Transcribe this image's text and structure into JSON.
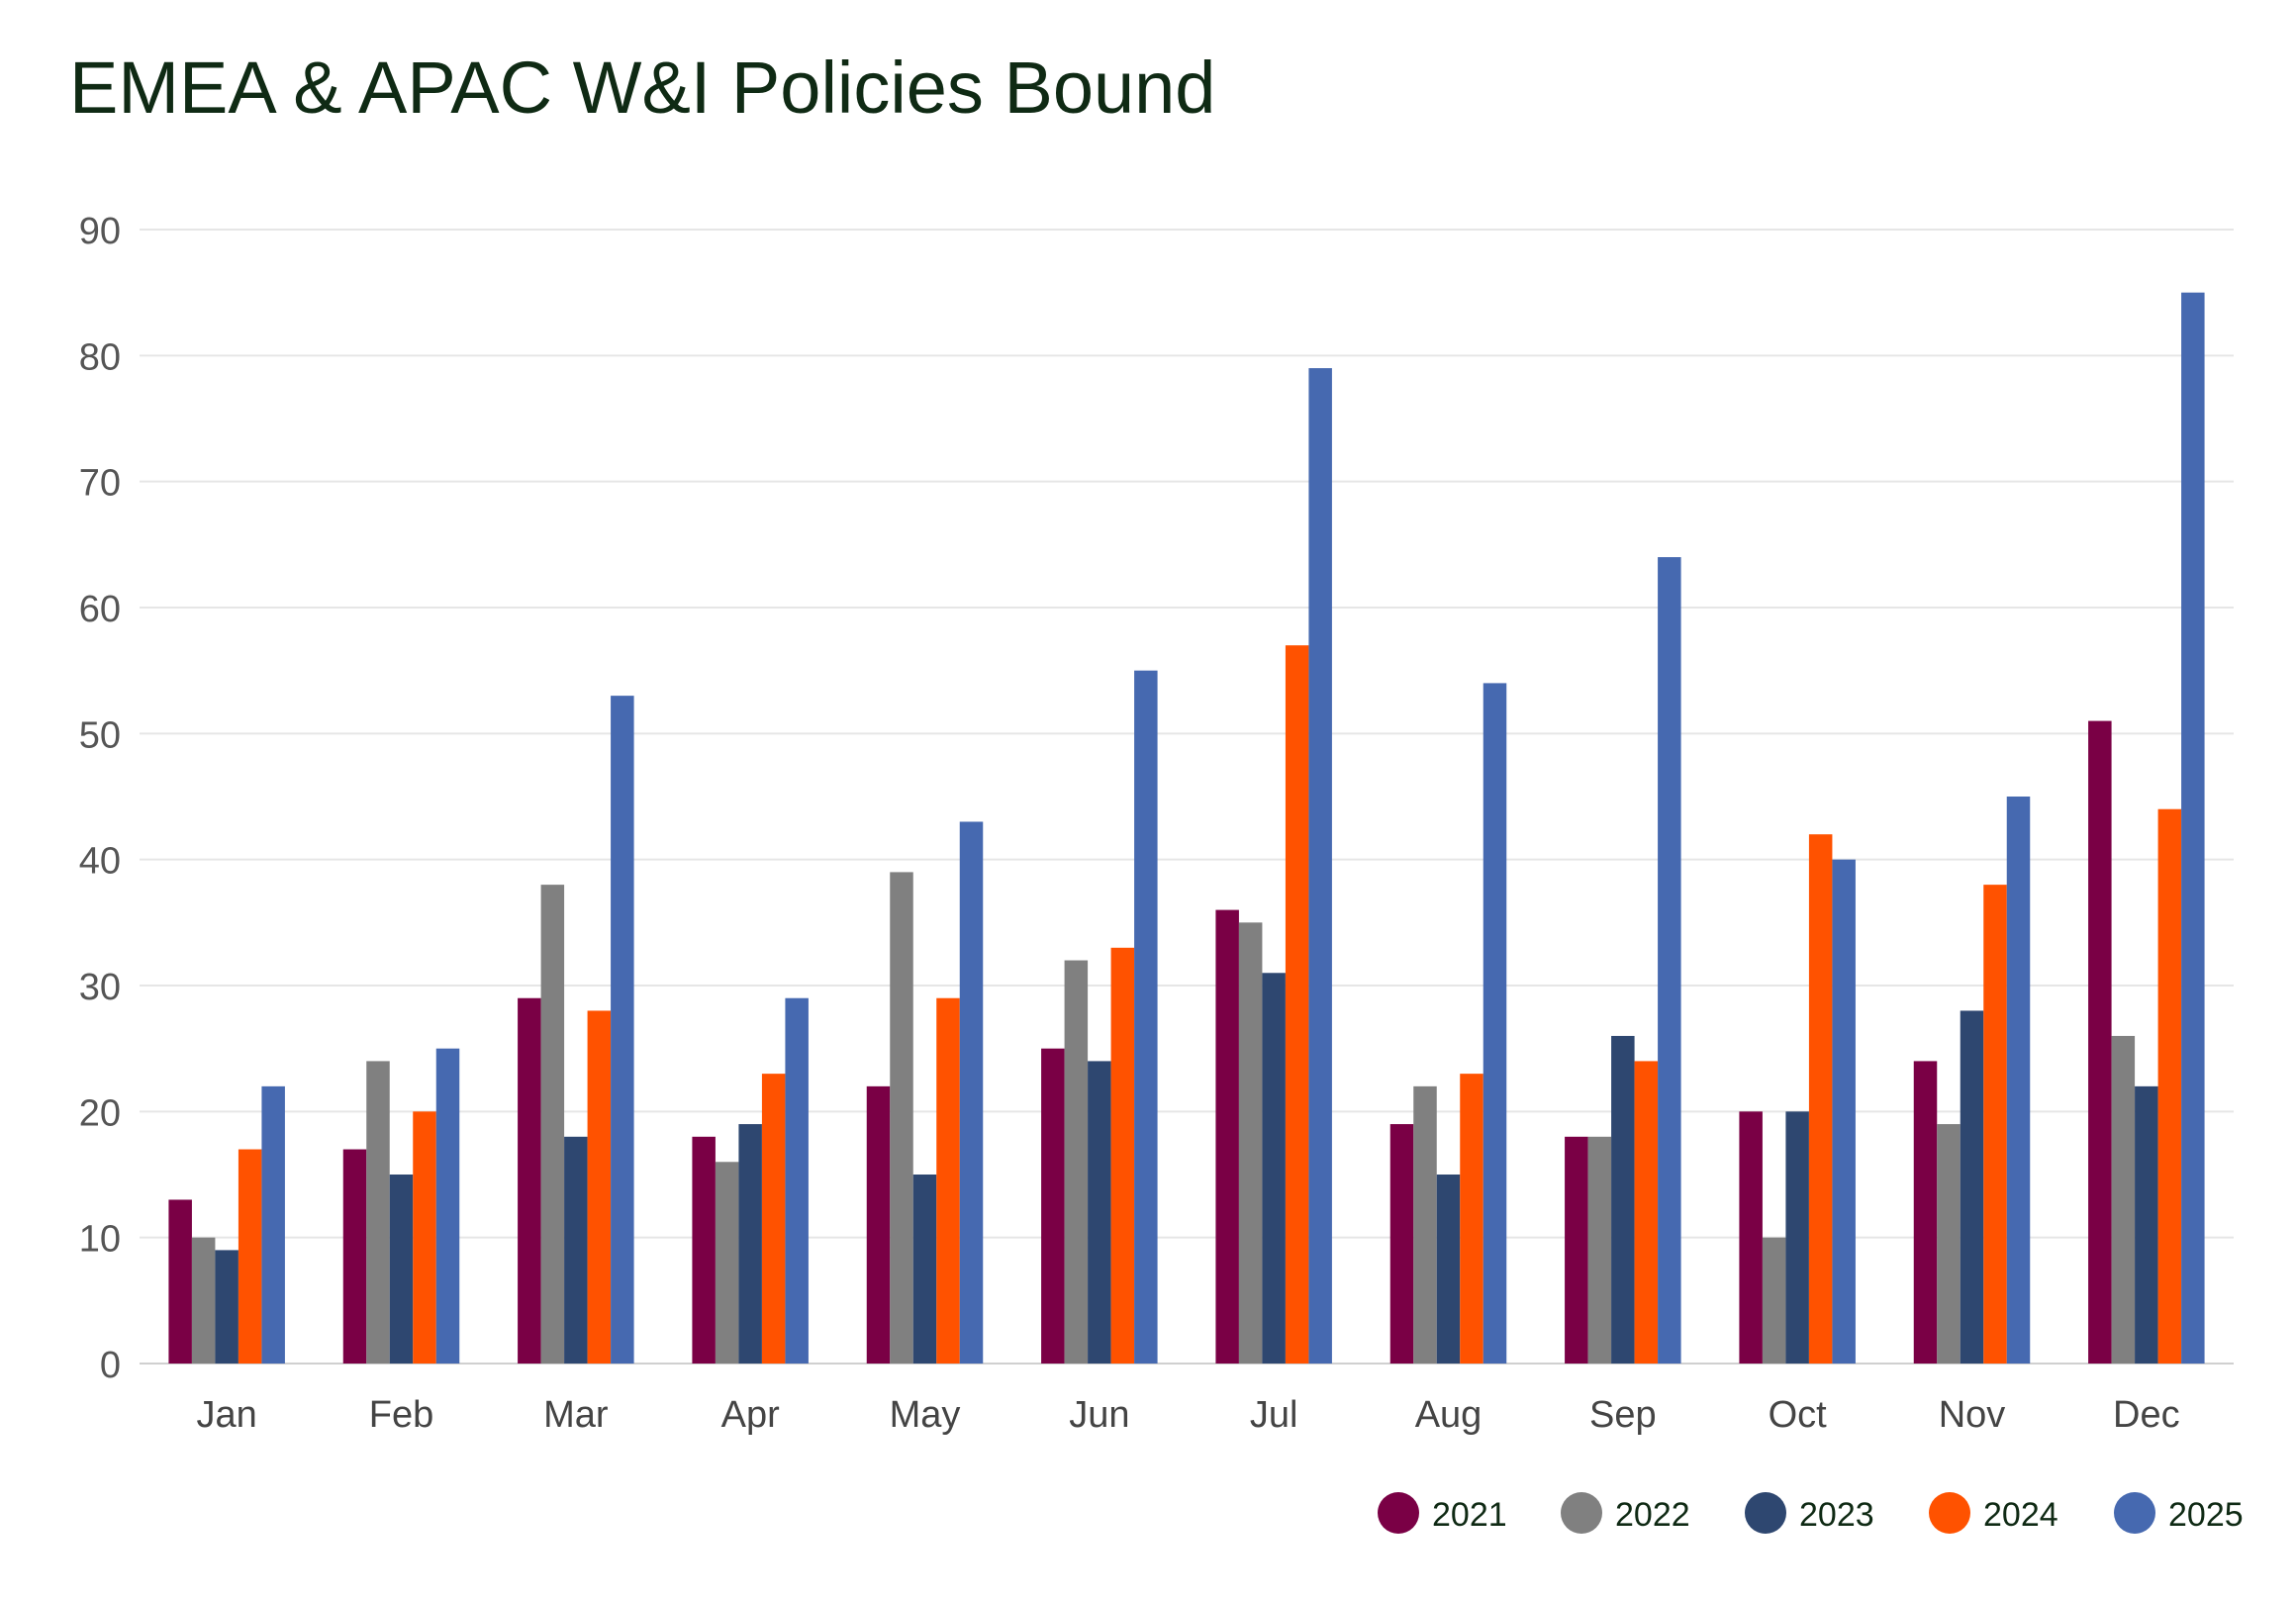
{
  "chart_data": {
    "type": "bar",
    "title": "EMEA & APAC W&I Policies Bound",
    "xlabel": "",
    "ylabel": "",
    "ylim": [
      0,
      90
    ],
    "yticks": [
      0,
      10,
      20,
      30,
      40,
      50,
      60,
      70,
      80,
      90
    ],
    "grid": true,
    "legend_position": "bottom-right",
    "categories": [
      "Jan",
      "Feb",
      "Mar",
      "Apr",
      "May",
      "Jun",
      "Jul",
      "Aug",
      "Sep",
      "Oct",
      "Nov",
      "Dec"
    ],
    "series": [
      {
        "name": "2021",
        "color": "#7a0045",
        "values": [
          13,
          17,
          29,
          18,
          22,
          25,
          36,
          19,
          18,
          20,
          24,
          51
        ]
      },
      {
        "name": "2022",
        "color": "#808080",
        "values": [
          10,
          24,
          38,
          16,
          39,
          32,
          35,
          22,
          18,
          10,
          19,
          26
        ]
      },
      {
        "name": "2023",
        "color": "#2e4770",
        "values": [
          9,
          15,
          18,
          19,
          15,
          24,
          31,
          15,
          26,
          20,
          28,
          22
        ]
      },
      {
        "name": "2024",
        "color": "#ff5200",
        "values": [
          17,
          20,
          28,
          23,
          29,
          33,
          57,
          23,
          24,
          42,
          38,
          44
        ]
      },
      {
        "name": "2025",
        "color": "#4669b0",
        "values": [
          22,
          25,
          53,
          29,
          43,
          55,
          79,
          54,
          64,
          40,
          45,
          85
        ]
      }
    ]
  }
}
